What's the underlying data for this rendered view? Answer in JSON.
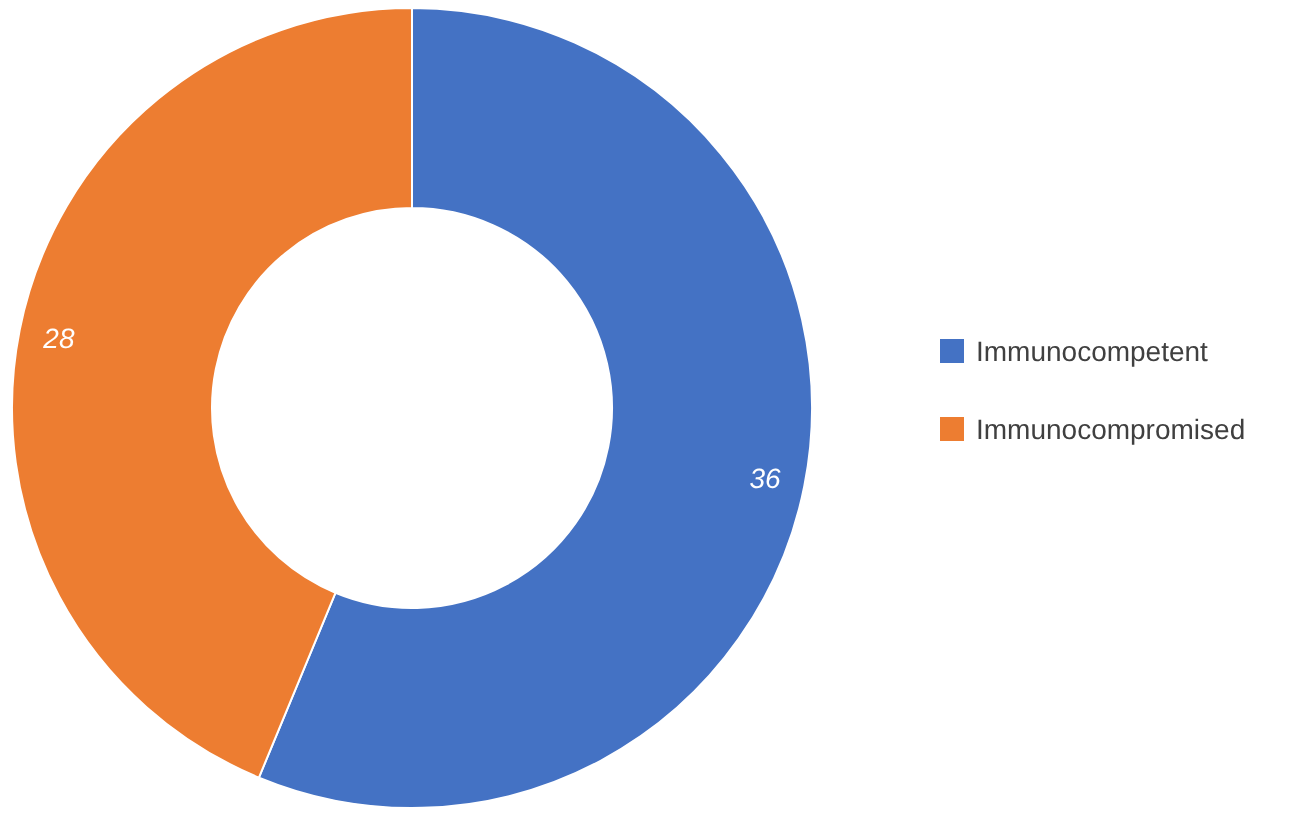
{
  "chart_data": {
    "type": "donut",
    "categories": [
      "Immunocompetent",
      "Immunocompromised"
    ],
    "values": [
      36,
      28
    ],
    "colors": [
      "#4472c4",
      "#ed7d31"
    ],
    "data_labels": true,
    "legend": "right"
  }
}
